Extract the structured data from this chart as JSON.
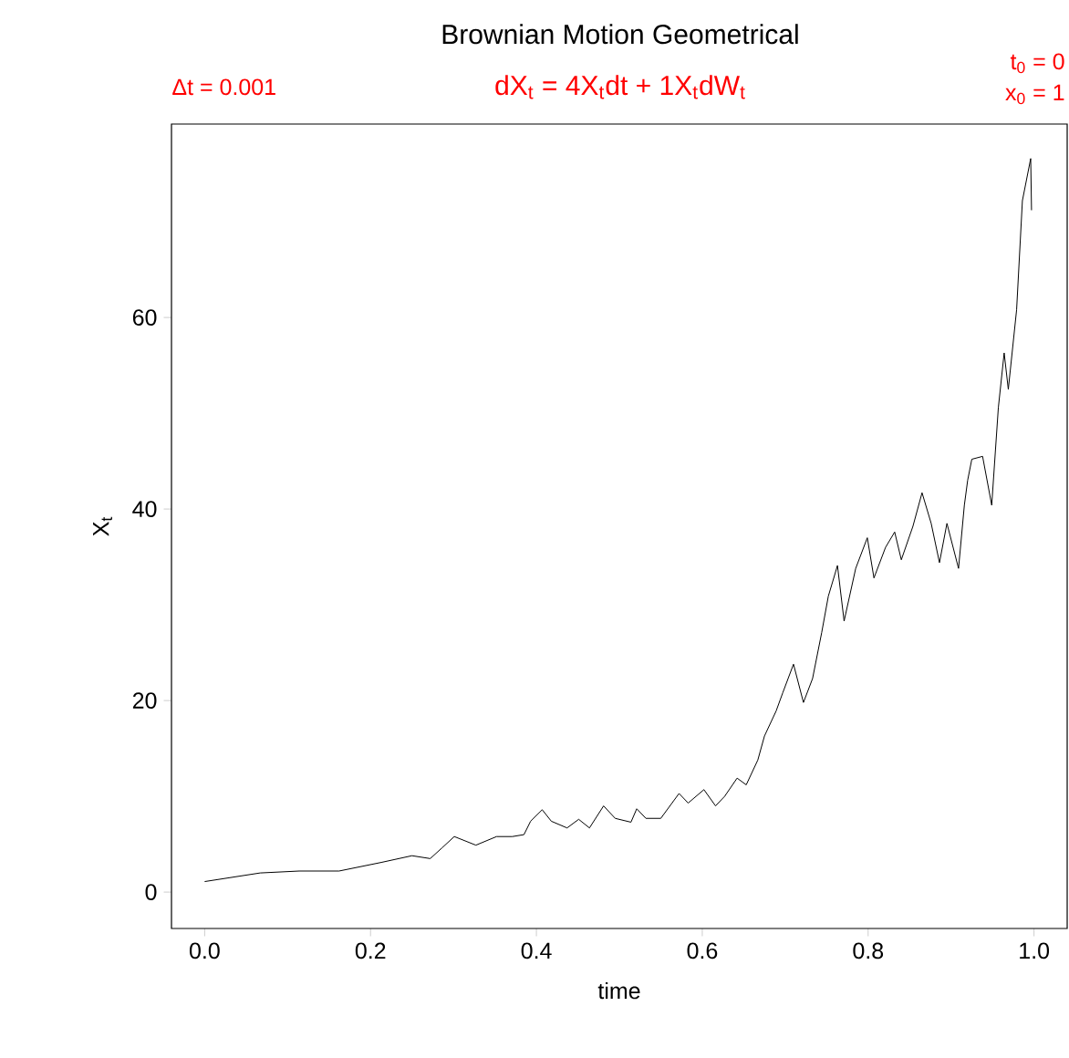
{
  "chart_data": {
    "type": "line",
    "title": "Brownian Motion Geometrical",
    "xlabel": "time",
    "ylabel": "X$_{t}$",
    "annotations": [
      "Δt = 0.001",
      "dX$_{t}$ = 4X$_{t}$dt + 1X$_{t}$dW$_{t}$",
      "t$_{0}$ = 0",
      "x$_{0}$ = 1"
    ],
    "x": [
      0.0,
      0.067,
      0.114,
      0.162,
      0.213,
      0.25,
      0.272,
      0.286,
      0.301,
      0.327,
      0.352,
      0.371,
      0.385,
      0.393,
      0.407,
      0.418,
      0.437,
      0.451,
      0.464,
      0.481,
      0.495,
      0.514,
      0.521,
      0.532,
      0.55,
      0.572,
      0.583,
      0.602,
      0.616,
      0.627,
      0.642,
      0.653,
      0.667,
      0.675,
      0.689,
      0.697,
      0.71,
      0.722,
      0.733,
      0.744,
      0.752,
      0.763,
      0.771,
      0.785,
      0.799,
      0.807,
      0.821,
      0.832,
      0.84,
      0.854,
      0.865,
      0.876,
      0.886,
      0.895,
      0.909,
      0.916,
      0.92,
      0.925,
      0.938,
      0.949,
      0.957,
      0.964,
      0.969,
      0.979,
      0.986,
      0.996,
      0.997
    ],
    "series": [
      {
        "color": "#000000",
        "values": [
          1.1,
          2.0,
          2.2,
          2.2,
          3.1,
          3.8,
          3.5,
          4.6,
          5.8,
          4.9,
          5.8,
          5.8,
          6.0,
          7.4,
          8.6,
          7.4,
          6.7,
          7.6,
          6.7,
          9.0,
          7.7,
          7.3,
          8.7,
          7.7,
          7.7,
          10.3,
          9.3,
          10.7,
          9.0,
          10.0,
          11.9,
          11.2,
          13.8,
          16.3,
          18.9,
          20.8,
          23.8,
          19.8,
          22.3,
          27.1,
          30.9,
          34.1,
          28.3,
          33.8,
          37.0,
          32.8,
          36.0,
          37.6,
          34.7,
          38.2,
          41.7,
          38.5,
          34.4,
          38.5,
          33.8,
          40.4,
          43.0,
          45.2,
          45.5,
          40.4,
          50.6,
          56.3,
          52.5,
          60.8,
          72.2,
          76.6,
          71.2
        ]
      }
    ],
    "xlim": [
      -0.04,
      1.04
    ],
    "ylim": [
      -3.8,
      80.2
    ],
    "xticks": [
      {
        "value": 0,
        "label": "0.0"
      },
      0.2,
      0.4,
      0.6,
      0.8,
      {
        "value": 1,
        "label": "1.0"
      }
    ],
    "yticks": [
      0,
      20,
      40,
      60
    ]
  }
}
